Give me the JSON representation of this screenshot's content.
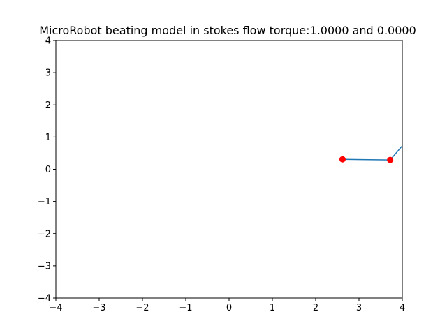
{
  "chart_data": {
    "type": "line",
    "title": "MicroRobot beating model in stokes flow torque:1.0000 and 0.0000",
    "xlabel": "",
    "ylabel": "",
    "xlim": [
      -4,
      4
    ],
    "ylim": [
      -4,
      4
    ],
    "grid": false,
    "x_ticks": [
      -4,
      -3,
      -2,
      -1,
      0,
      1,
      2,
      3,
      4
    ],
    "y_ticks": [
      -4,
      -3,
      -2,
      -1,
      0,
      1,
      2,
      3,
      4
    ],
    "x_tick_labels": [
      "−4",
      "−3",
      "−2",
      "−1",
      "0",
      "1",
      "2",
      "3",
      "4"
    ],
    "y_tick_labels": [
      "−4",
      "−3",
      "−2",
      "−1",
      "0",
      "1",
      "2",
      "3",
      "4"
    ],
    "series": [
      {
        "kind": "line",
        "color": "#1f77b4",
        "x": [
          2.62,
          3.72,
          4.3
        ],
        "y": [
          0.31,
          0.29,
          1.2
        ]
      },
      {
        "kind": "markers",
        "color": "#ff0000",
        "x": [
          2.62,
          3.72
        ],
        "y": [
          0.31,
          0.29
        ]
      }
    ]
  }
}
